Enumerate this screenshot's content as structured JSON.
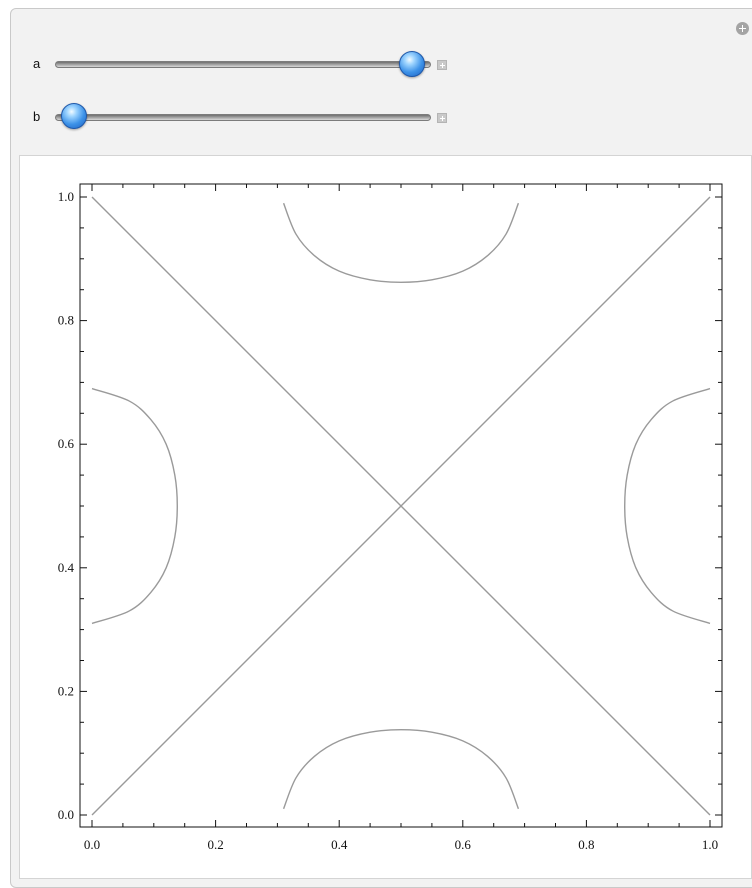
{
  "controls": {
    "a": {
      "label": "a",
      "value": 0.95
    },
    "b": {
      "label": "b",
      "value": 0.05
    }
  },
  "plot": {
    "xticks": [
      "0.0",
      "0.2",
      "0.4",
      "0.6",
      "0.8",
      "1.0"
    ],
    "yticks": [
      "0.0",
      "0.2",
      "0.4",
      "0.6",
      "0.8",
      "1.0"
    ],
    "xlim": [
      0,
      1
    ],
    "ylim": [
      0,
      1
    ],
    "line_color": "#9a9a9a"
  },
  "chart_data": {
    "type": "line",
    "title": "",
    "xlabel": "",
    "ylabel": "",
    "xlim": [
      0,
      1
    ],
    "ylim": [
      0,
      1
    ],
    "series": [
      {
        "x": [
          0,
          1
        ],
        "y": [
          0,
          1
        ]
      },
      {
        "x": [
          0,
          1
        ],
        "y": [
          1,
          0
        ]
      },
      {
        "x": [
          0.31,
          0.33,
          0.36,
          0.4,
          0.45,
          0.5,
          0.55,
          0.6,
          0.64,
          0.67,
          0.69
        ],
        "y": [
          0.99,
          0.94,
          0.905,
          0.88,
          0.866,
          0.862,
          0.866,
          0.88,
          0.905,
          0.94,
          0.99
        ]
      },
      {
        "x": [
          0.31,
          0.33,
          0.36,
          0.4,
          0.45,
          0.5,
          0.55,
          0.6,
          0.64,
          0.67,
          0.69
        ],
        "y": [
          0.01,
          0.06,
          0.095,
          0.12,
          0.134,
          0.138,
          0.134,
          0.12,
          0.095,
          0.06,
          0.01
        ]
      },
      {
        "x": [
          0.0,
          0.06,
          0.095,
          0.12,
          0.134,
          0.138,
          0.134,
          0.12,
          0.095,
          0.06,
          0.0
        ],
        "y": [
          0.69,
          0.67,
          0.64,
          0.6,
          0.55,
          0.5,
          0.45,
          0.4,
          0.36,
          0.33,
          0.31
        ]
      },
      {
        "x": [
          1.0,
          0.94,
          0.905,
          0.88,
          0.866,
          0.862,
          0.866,
          0.88,
          0.905,
          0.94,
          1.0
        ],
        "y": [
          0.69,
          0.67,
          0.64,
          0.6,
          0.55,
          0.5,
          0.45,
          0.4,
          0.36,
          0.33,
          0.31
        ]
      }
    ]
  }
}
